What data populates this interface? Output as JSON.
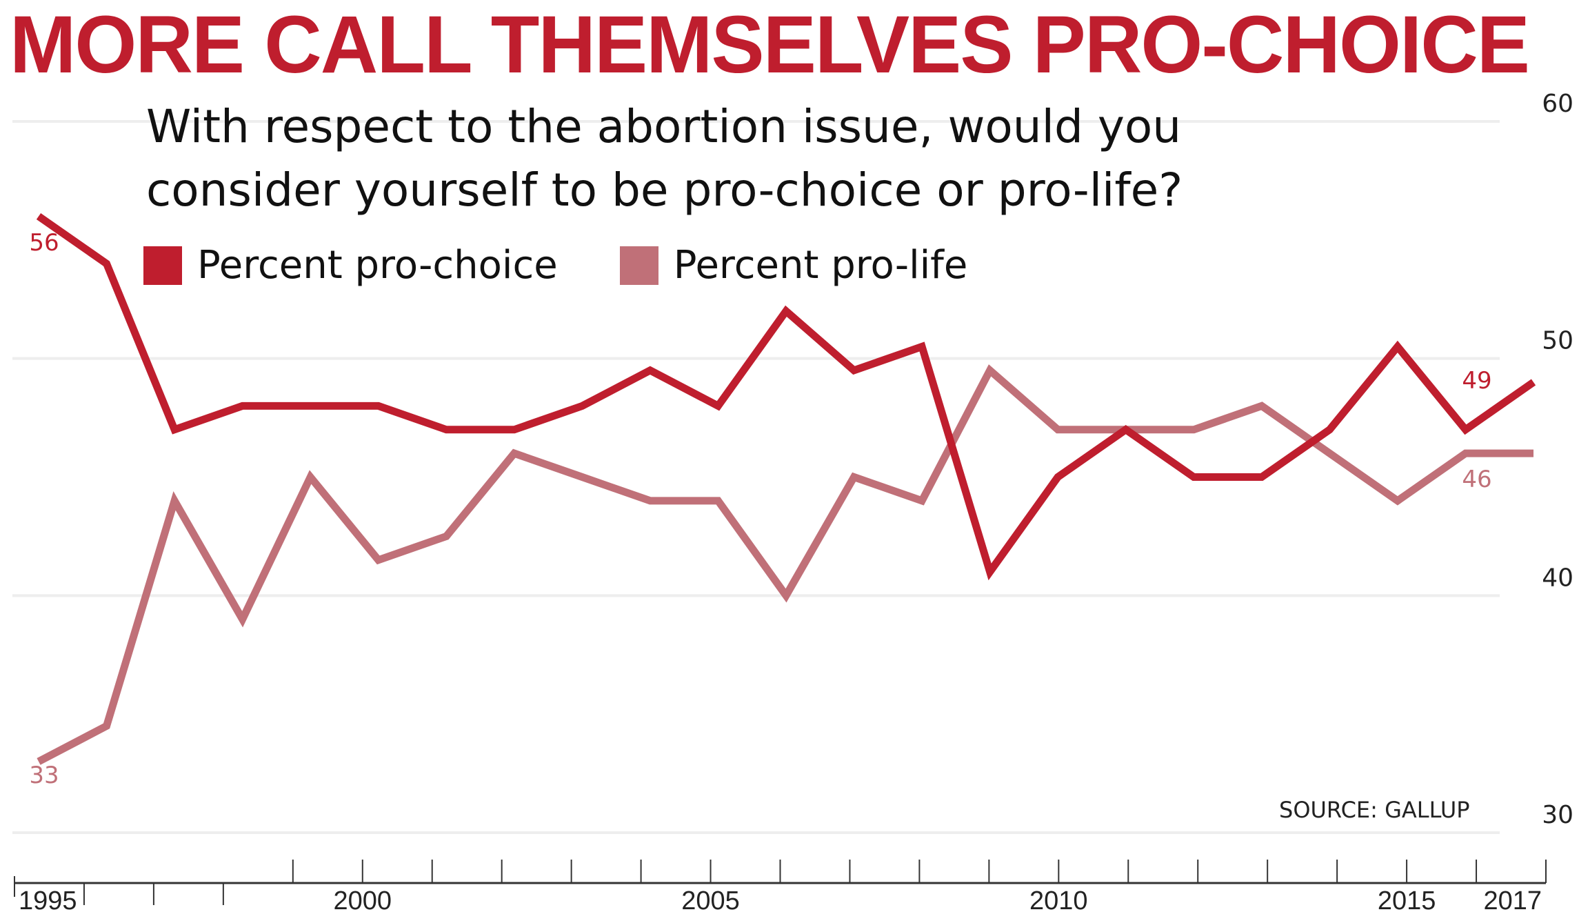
{
  "headline": "MORE CALL THEMSELVES PRO-CHOICE",
  "question_line1": "With respect to the abortion issue, would you",
  "question_line2": "consider yourself to be pro-choice or pro-life?",
  "source": "SOURCE: GALLUP",
  "colors": {
    "pro_choice": "#bf1e2e",
    "pro_life": "#c07078",
    "headline": "#bf1e2e",
    "grid": "#eeeeee"
  },
  "chart_data": {
    "type": "line",
    "title": "MORE CALL THEMSELVES PRO-CHOICE",
    "subtitle": "With respect to the abortion issue, would you consider yourself to be pro-choice or pro-life?",
    "xlabel": "",
    "ylabel": "",
    "x": [
      1995,
      1996,
      1997,
      1998,
      1999,
      2000,
      2001,
      2002,
      2003,
      2004,
      2005,
      2006,
      2007,
      2008,
      2009,
      2010,
      2011,
      2012,
      2013,
      2014,
      2015,
      2016,
      2017
    ],
    "x_tick_labels": [
      "1995",
      "2000",
      "2005",
      "2010",
      "2015",
      "2017"
    ],
    "x_tick_values": [
      1995,
      2000,
      2005,
      2010,
      2015,
      2017
    ],
    "xlim": [
      1995,
      2017
    ],
    "y_tick_labels": [
      "60",
      "50",
      "40",
      "30"
    ],
    "y_tick_values": [
      60,
      50,
      40,
      30
    ],
    "ylim": [
      30,
      60
    ],
    "grid": true,
    "legend_position": "top-left",
    "series": [
      {
        "name": "Percent pro-choice",
        "color": "#bf1e2e",
        "values": [
          56,
          54,
          47,
          48,
          48,
          48,
          47,
          47,
          48,
          49.5,
          48,
          52,
          49.5,
          50.5,
          41,
          45,
          47,
          45,
          45,
          47,
          50.5,
          47,
          49
        ],
        "start_label": "56",
        "end_label": "49"
      },
      {
        "name": "Percent pro-life",
        "color": "#c07078",
        "values": [
          33,
          34.5,
          44,
          39,
          45,
          41.5,
          42.5,
          46,
          45,
          44,
          44,
          40,
          45,
          44,
          49.5,
          47,
          47,
          47,
          48,
          46,
          44,
          46,
          46
        ],
        "start_label": "33",
        "end_label": "46"
      }
    ],
    "annotations": [
      "SOURCE: GALLUP"
    ]
  }
}
